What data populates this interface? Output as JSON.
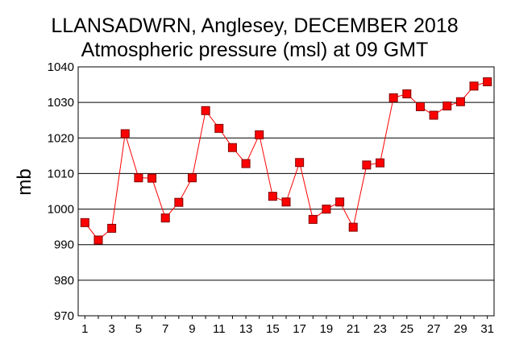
{
  "chart_data": {
    "type": "line",
    "title": "LLANSADWRN, Anglesey,  DECEMBER 2018",
    "subtitle": "Atmospheric pressure  (msl) at 09 GMT",
    "xlabel": "",
    "ylabel": "mb",
    "xlim": [
      0.5,
      31.5
    ],
    "ylim": [
      970,
      1040
    ],
    "y_ticks": [
      970,
      980,
      990,
      1000,
      1010,
      1020,
      1030,
      1040
    ],
    "x_tick_labels": [
      "1",
      "3",
      "5",
      "7",
      "9",
      "11",
      "13",
      "15",
      "17",
      "19",
      "21",
      "23",
      "25",
      "27",
      "29",
      "31"
    ],
    "grid": "horizontal",
    "legend": "none",
    "line_color": "#ff0000",
    "marker_color": "#ff0000",
    "marker_edge_color": "#800000",
    "grid_color": "#000000",
    "series": [
      {
        "x": [
          1,
          2,
          3,
          4,
          5,
          6,
          7,
          8,
          9,
          10,
          11,
          12,
          13,
          14,
          15,
          16,
          17,
          18,
          19,
          20,
          21,
          22,
          23,
          24,
          25,
          26,
          27,
          28,
          29,
          30,
          31
        ],
        "values": [
          996.2,
          991.3,
          994.6,
          1021.2,
          1008.8,
          1008.7,
          997.5,
          1001.9,
          1008.8,
          1027.7,
          1022.7,
          1017.3,
          1012.8,
          1020.9,
          1003.6,
          1002.0,
          1013.1,
          997.1,
          1000.0,
          1002.0,
          994.9,
          1012.4,
          1013.0,
          1031.3,
          1032.4,
          1028.8,
          1026.4,
          1029.0,
          1030.2,
          1034.6,
          1035.8
        ]
      }
    ]
  }
}
